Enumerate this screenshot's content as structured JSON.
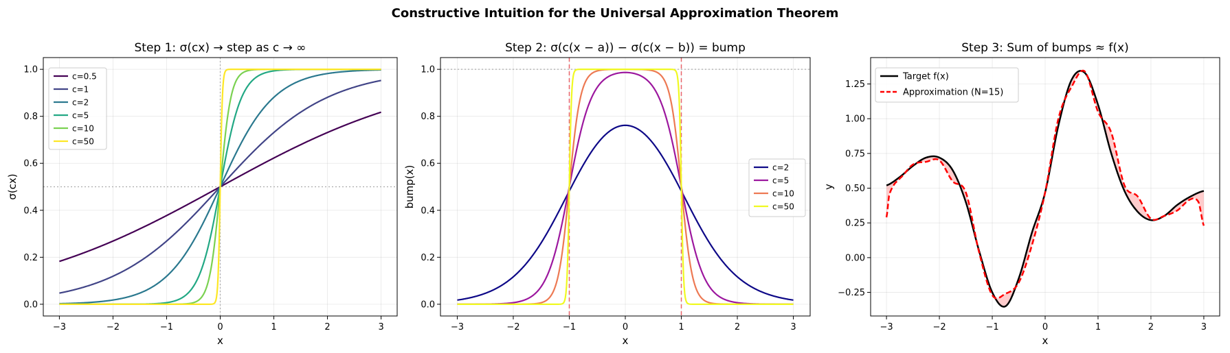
{
  "figure": {
    "suptitle": "Constructive Intuition for the Universal Approximation Theorem"
  },
  "chart_data": [
    {
      "type": "line",
      "title": "Step 1: σ(cx) → step as c → ∞",
      "xlabel": "x",
      "ylabel": "σ(cx)",
      "xlim": [
        -3.3,
        3.3
      ],
      "ylim": [
        -0.05,
        1.05
      ],
      "xticks": [
        "−3",
        "−2",
        "−1",
        "0",
        "1",
        "2",
        "3"
      ],
      "yticks": [
        "0.0",
        "0.2",
        "0.4",
        "0.6",
        "0.8",
        "1.0"
      ],
      "grid": true,
      "legend_position": "upper-left",
      "x_range": [
        -3,
        3
      ],
      "formula": "sigmoid(c*x)",
      "series": [
        {
          "name": "c=0.5",
          "c": 0.5,
          "color": "#440154"
        },
        {
          "name": "c=1",
          "c": 1,
          "color": "#414487"
        },
        {
          "name": "c=2",
          "c": 2,
          "color": "#2a788e"
        },
        {
          "name": "c=5",
          "c": 5,
          "color": "#22a884"
        },
        {
          "name": "c=10",
          "c": 10,
          "color": "#7ad151"
        },
        {
          "name": "c=50",
          "c": 50,
          "color": "#fde725"
        }
      ],
      "reference_lines": [
        {
          "orientation": "horizontal",
          "value": 0.5,
          "color": "#aaaaaa",
          "style": "dotted"
        },
        {
          "orientation": "vertical",
          "value": 0,
          "color": "#aaaaaa",
          "style": "dotted"
        }
      ]
    },
    {
      "type": "line",
      "title": "Step 2: σ(c(x − a)) − σ(c(x − b)) = bump",
      "xlabel": "x",
      "ylabel": "bump(x)",
      "xlim": [
        -3.3,
        3.3
      ],
      "ylim": [
        -0.05,
        1.05
      ],
      "xticks": [
        "−3",
        "−2",
        "−1",
        "0",
        "1",
        "2",
        "3"
      ],
      "yticks": [
        "0.0",
        "0.2",
        "0.4",
        "0.6",
        "0.8",
        "1.0"
      ],
      "grid": true,
      "legend_position": "center-right",
      "x_range": [
        -3,
        3
      ],
      "a": -1,
      "b": 1,
      "formula": "sigmoid(c*(x-a)) - sigmoid(c*(x-b))",
      "series": [
        {
          "name": "c=2",
          "c": 2,
          "color": "#0d0887"
        },
        {
          "name": "c=5",
          "c": 5,
          "color": "#9c179e"
        },
        {
          "name": "c=10",
          "c": 10,
          "color": "#ed7953"
        },
        {
          "name": "c=50",
          "c": 50,
          "color": "#f0f921"
        }
      ],
      "reference_lines": [
        {
          "orientation": "horizontal",
          "value": 1.0,
          "color": "#aaaaaa",
          "style": "dotted"
        },
        {
          "orientation": "vertical",
          "value": -1,
          "color": "#e8646a",
          "style": "dashed"
        },
        {
          "orientation": "vertical",
          "value": 1,
          "color": "#e8646a",
          "style": "dashed"
        }
      ]
    },
    {
      "type": "line",
      "title": "Step 3: Sum of bumps ≈ f(x)",
      "xlabel": "x",
      "ylabel": "y",
      "xlim": [
        -3.3,
        3.3
      ],
      "ylim": [
        -0.42,
        1.44
      ],
      "xticks": [
        "−3",
        "−2",
        "−1",
        "0",
        "1",
        "2",
        "3"
      ],
      "yticks": [
        "−0.25",
        "0.00",
        "0.25",
        "0.50",
        "0.75",
        "1.00",
        "1.25"
      ],
      "ytick_values": [
        -0.25,
        0,
        0.25,
        0.5,
        0.75,
        1.0,
        1.25
      ],
      "grid": true,
      "legend_position": "upper-left",
      "fill_between": {
        "color": "#ff0000",
        "opacity": 0.2
      },
      "series": [
        {
          "name": "Target f(x)",
          "color": "#000000",
          "style": "solid",
          "x": [
            -3.0,
            -2.75,
            -2.5,
            -2.25,
            -2.0,
            -1.75,
            -1.5,
            -1.25,
            -1.0,
            -0.75,
            -0.5,
            -0.25,
            0.0,
            0.25,
            0.5,
            0.75,
            1.0,
            1.25,
            1.5,
            1.75,
            2.0,
            2.25,
            2.5,
            2.75,
            3.0
          ],
          "y": [
            0.52,
            0.58,
            0.66,
            0.72,
            0.72,
            0.63,
            0.4,
            0.05,
            -0.25,
            -0.35,
            -0.15,
            0.18,
            0.47,
            0.95,
            1.28,
            1.33,
            1.1,
            0.75,
            0.48,
            0.33,
            0.27,
            0.3,
            0.38,
            0.44,
            0.48
          ]
        },
        {
          "name": "Approximation (N=15)",
          "color": "#ff0000",
          "style": "dashed",
          "x": [
            -3.0,
            -2.95,
            -2.85,
            -2.75,
            -2.5,
            -2.25,
            -2.0,
            -1.75,
            -1.5,
            -1.25,
            -1.0,
            -0.75,
            -0.5,
            -0.25,
            0.0,
            0.25,
            0.5,
            0.75,
            1.0,
            1.25,
            1.5,
            1.75,
            2.0,
            2.25,
            2.5,
            2.75,
            2.9,
            3.0
          ],
          "y": [
            0.29,
            0.45,
            0.53,
            0.57,
            0.67,
            0.69,
            0.7,
            0.55,
            0.47,
            0.04,
            -0.27,
            -0.26,
            -0.18,
            0.09,
            0.47,
            1.0,
            1.23,
            1.34,
            1.05,
            0.9,
            0.52,
            0.44,
            0.28,
            0.3,
            0.34,
            0.42,
            0.4,
            0.23
          ]
        }
      ]
    }
  ]
}
